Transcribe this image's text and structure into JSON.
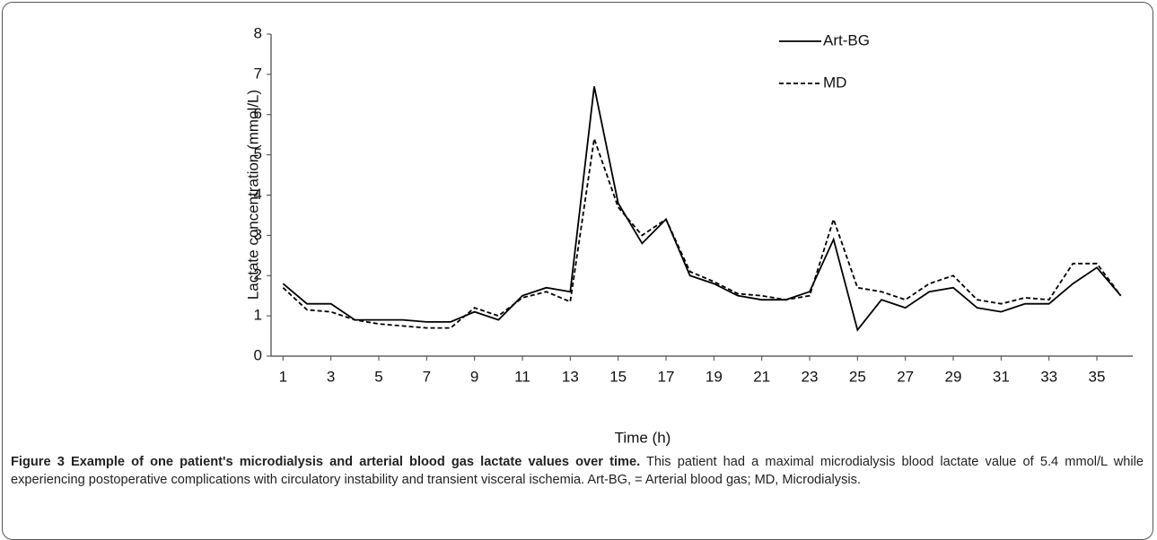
{
  "chart_data": {
    "type": "line",
    "x_label": "Time (h)",
    "y_label": "Lactate concentration (mmol/L)",
    "x": [
      1,
      2,
      3,
      4,
      5,
      6,
      7,
      8,
      9,
      10,
      11,
      12,
      13,
      14,
      15,
      16,
      17,
      18,
      19,
      20,
      21,
      22,
      23,
      24,
      25,
      26,
      27,
      28,
      29,
      30,
      31,
      32,
      33,
      34,
      35,
      36
    ],
    "xlim": [
      0.5,
      36.5
    ],
    "xticks": [
      1,
      3,
      5,
      7,
      9,
      11,
      13,
      15,
      17,
      19,
      21,
      23,
      25,
      27,
      29,
      31,
      33,
      35
    ],
    "ylim": [
      0,
      8
    ],
    "yticks": [
      0,
      1,
      2,
      3,
      4,
      5,
      6,
      7,
      8
    ],
    "legend": "top-right",
    "series": [
      {
        "name": "Art-BG",
        "color": "#000000",
        "dash": "solid",
        "values": [
          1.8,
          1.3,
          1.3,
          0.9,
          0.9,
          0.9,
          0.85,
          0.85,
          1.1,
          0.9,
          1.5,
          1.7,
          1.6,
          6.7,
          3.8,
          2.8,
          3.4,
          2.0,
          1.8,
          1.5,
          1.4,
          1.4,
          1.6,
          2.9,
          0.65,
          1.4,
          1.2,
          1.6,
          1.7,
          1.2,
          1.1,
          1.3,
          1.3,
          1.8,
          2.2,
          1.5
        ]
      },
      {
        "name": "MD",
        "color": "#000000",
        "dash": "dashed",
        "values": [
          1.7,
          1.15,
          1.1,
          0.9,
          0.8,
          0.75,
          0.7,
          0.7,
          1.2,
          1.0,
          1.45,
          1.6,
          1.35,
          5.4,
          3.7,
          3.0,
          3.4,
          2.1,
          1.85,
          1.55,
          1.5,
          1.4,
          1.5,
          3.4,
          1.7,
          1.6,
          1.4,
          1.8,
          2.0,
          1.4,
          1.3,
          1.45,
          1.4,
          2.3,
          2.3,
          1.5
        ]
      }
    ]
  },
  "figure": {
    "title": "Figure 3 Example of one patient's microdialysis and arterial blood gas lactate values over time.",
    "text": "This patient had a maximal microdialysis blood lactate value of 5.4 mmol/L while experiencing postoperative complications with circulatory instability and transient visceral ischemia. Art-BG, = Arterial blood gas; MD, Microdialysis."
  }
}
